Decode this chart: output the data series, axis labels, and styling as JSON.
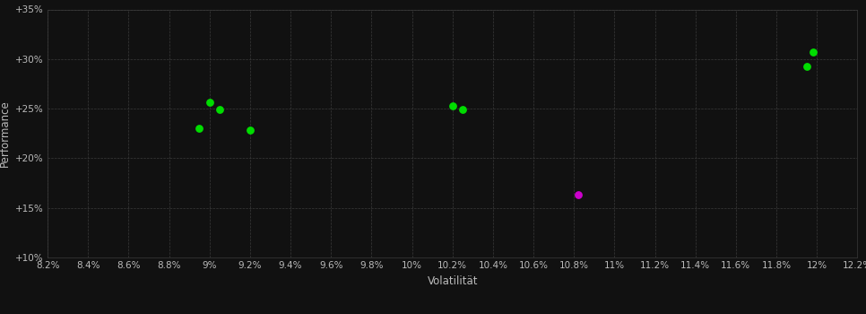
{
  "background_color": "#111111",
  "plot_bg_color": "#111111",
  "grid_color": "#3a3a3a",
  "text_color": "#bbbbbb",
  "xlabel": "Volatilität",
  "ylabel": "Performance",
  "xlim": [
    0.082,
    0.122
  ],
  "ylim": [
    0.1,
    0.35
  ],
  "xticks": [
    0.082,
    0.084,
    0.086,
    0.088,
    0.09,
    0.092,
    0.094,
    0.096,
    0.098,
    0.1,
    0.102,
    0.104,
    0.106,
    0.108,
    0.11,
    0.112,
    0.114,
    0.116,
    0.118,
    0.12,
    0.122
  ],
  "yticks": [
    0.1,
    0.15,
    0.2,
    0.25,
    0.3,
    0.35
  ],
  "green_points": [
    [
      0.09,
      0.256
    ],
    [
      0.0905,
      0.249
    ],
    [
      0.0895,
      0.2305
    ],
    [
      0.092,
      0.228
    ],
    [
      0.102,
      0.253
    ],
    [
      0.1025,
      0.249
    ],
    [
      0.1198,
      0.3075
    ],
    [
      0.1195,
      0.293
    ]
  ],
  "magenta_points": [
    [
      0.1082,
      0.163
    ]
  ],
  "green_color": "#00dd00",
  "magenta_color": "#cc00cc",
  "marker_size": 28
}
